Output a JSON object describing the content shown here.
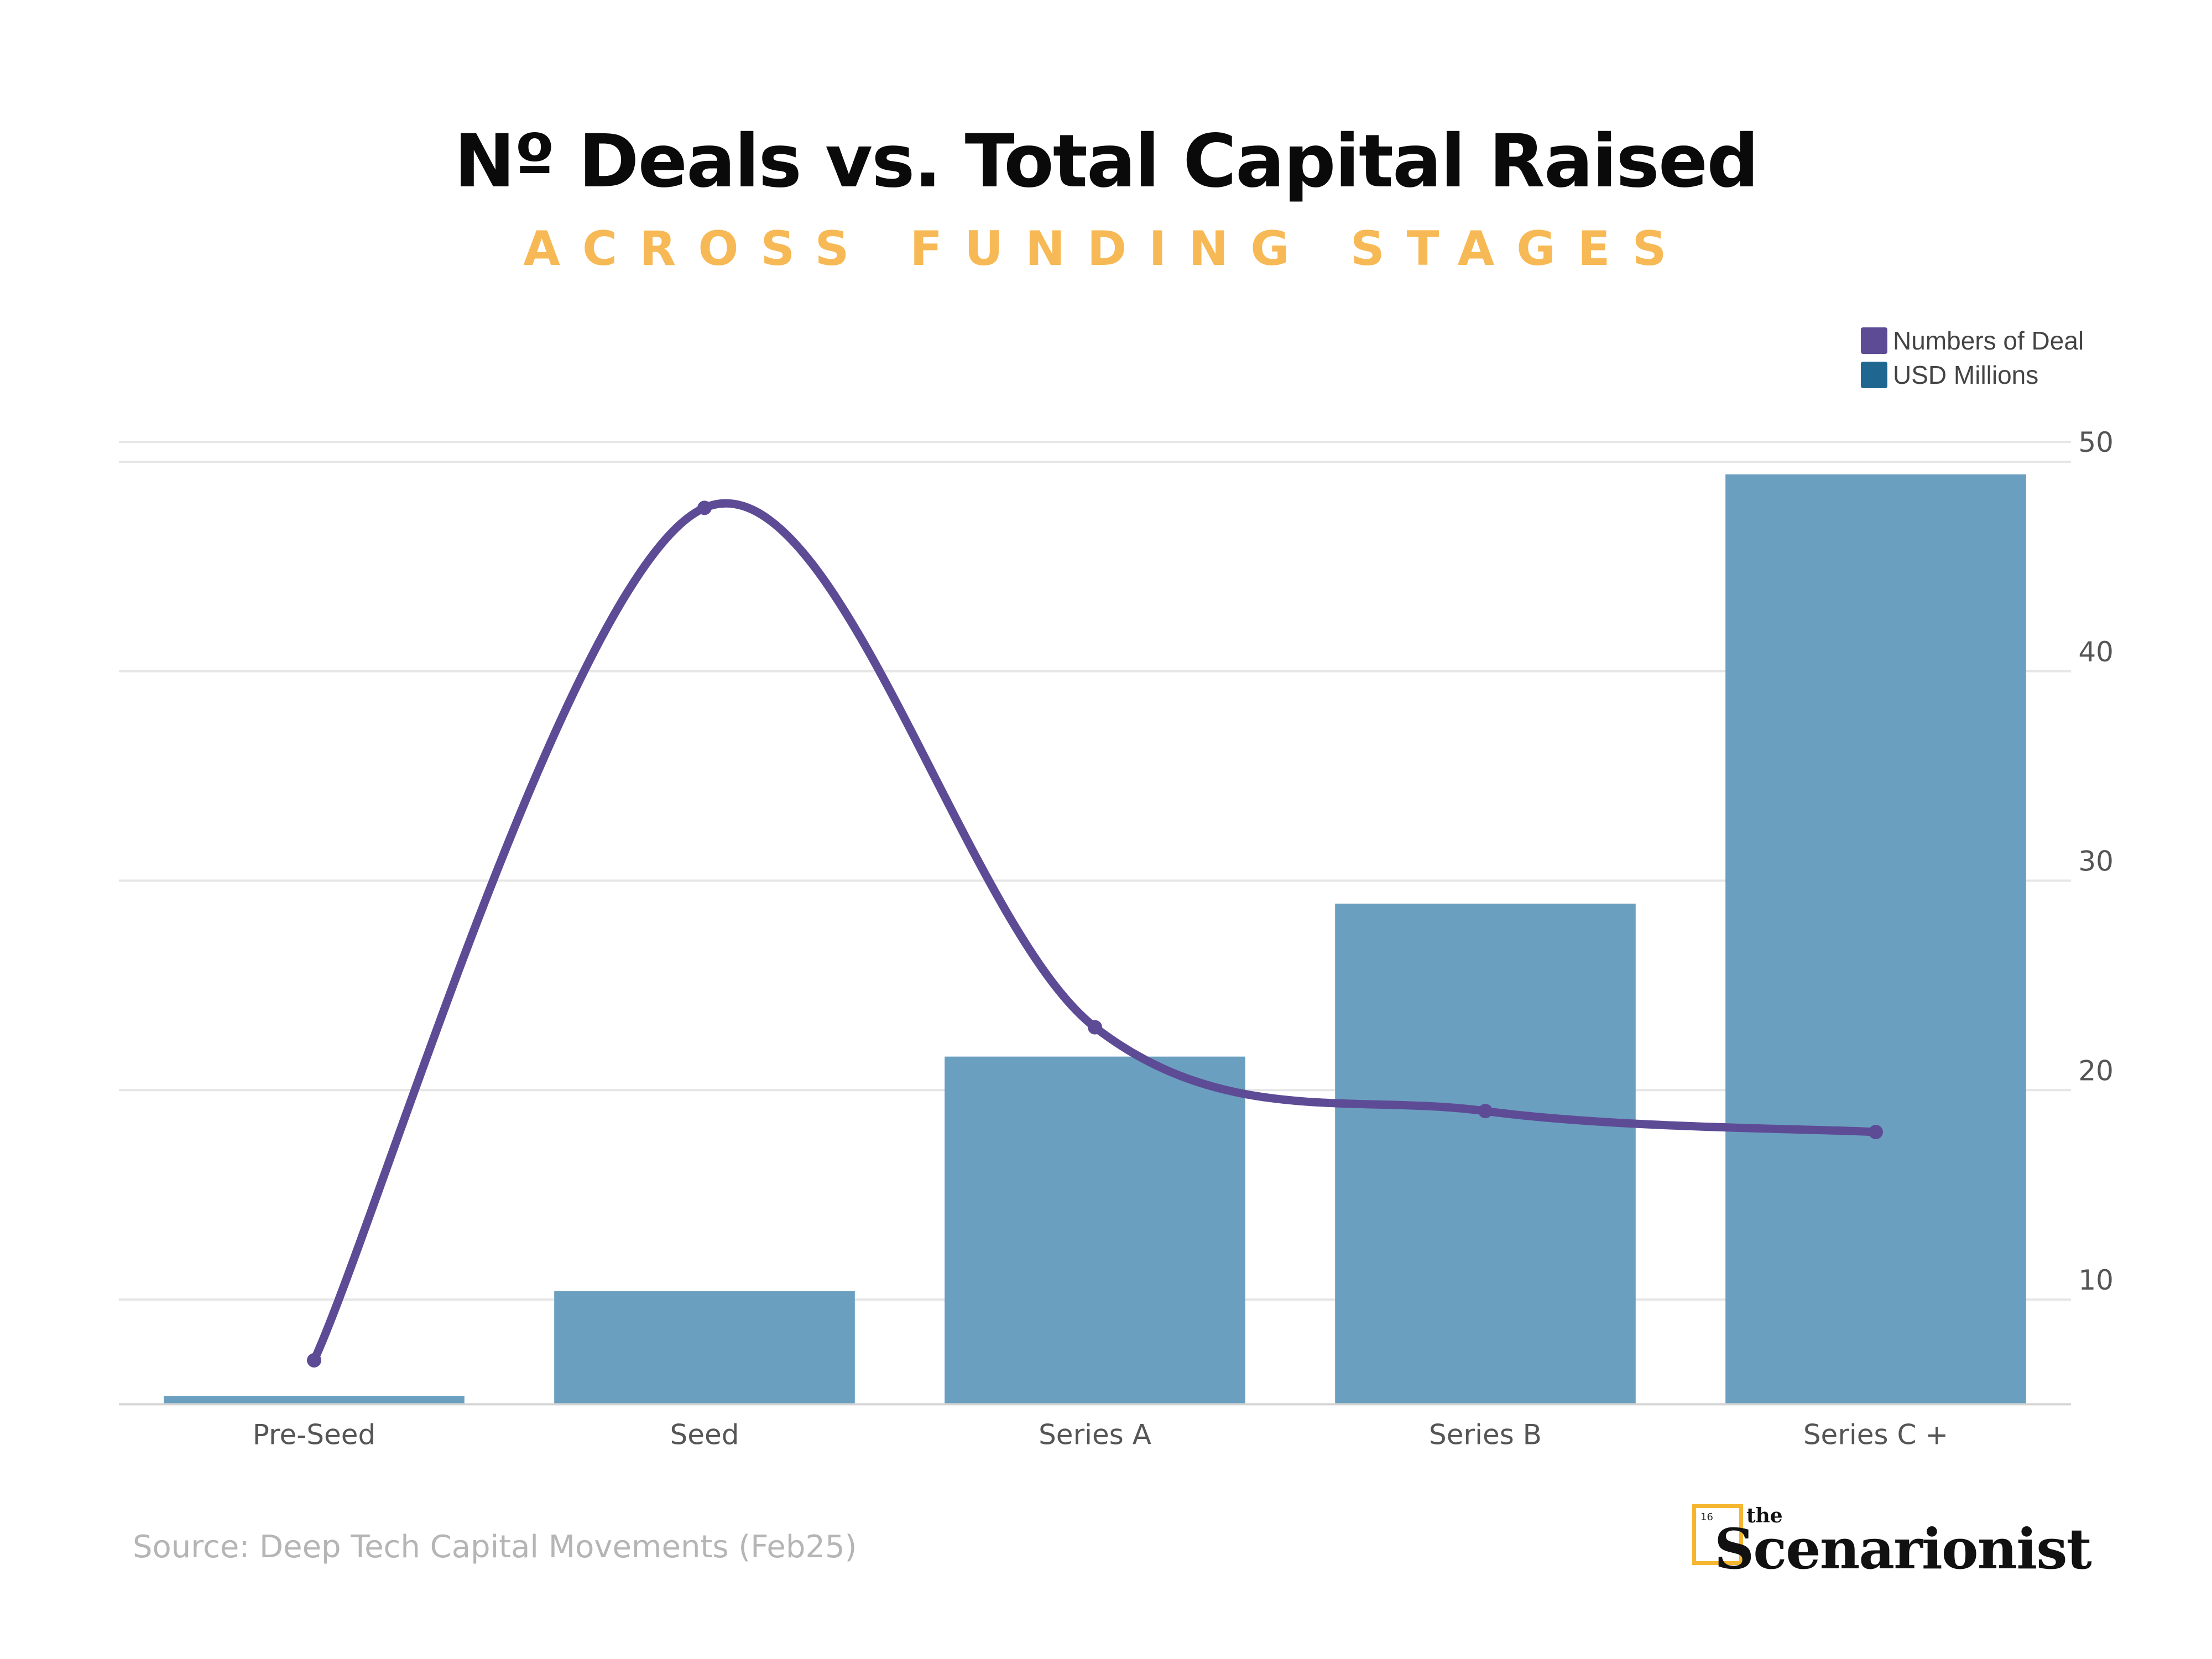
{
  "header": {
    "title": "Nº Deals vs. Total Capital Raised",
    "subtitle": "ACROSS FUNDING STAGES"
  },
  "legend": {
    "items": [
      {
        "label": "Numbers of Deal",
        "color": "#5e4b96"
      },
      {
        "label": "USD Millions",
        "color": "#1f6791"
      }
    ],
    "position": "top-right"
  },
  "footer": {
    "source": "Source: Deep Tech Capital Movements (Feb25)",
    "logo_the": "the",
    "logo_name": "Scenarionist",
    "logo_number": "16"
  },
  "chart_data": {
    "type": "bar",
    "categories": [
      "Pre-Seed",
      "Seed",
      "Series A",
      "Series B",
      "Series C +"
    ],
    "series": [
      {
        "name": "USD Millions",
        "type": "bar",
        "color": "#6b9fbf",
        "values": [
          5.4,
          10.4,
          21.6,
          28.9,
          49.4
        ]
      },
      {
        "name": "Numbers of Deal",
        "type": "line",
        "color": "#5e4b96",
        "smooth": true,
        "values": [
          7.1,
          47.8,
          23.0,
          19.0,
          18.0
        ]
      }
    ],
    "y_axis": {
      "side": "right",
      "ticks": [
        10,
        20,
        30,
        40,
        50
      ],
      "ylim": [
        5,
        51
      ]
    },
    "grid": true
  }
}
